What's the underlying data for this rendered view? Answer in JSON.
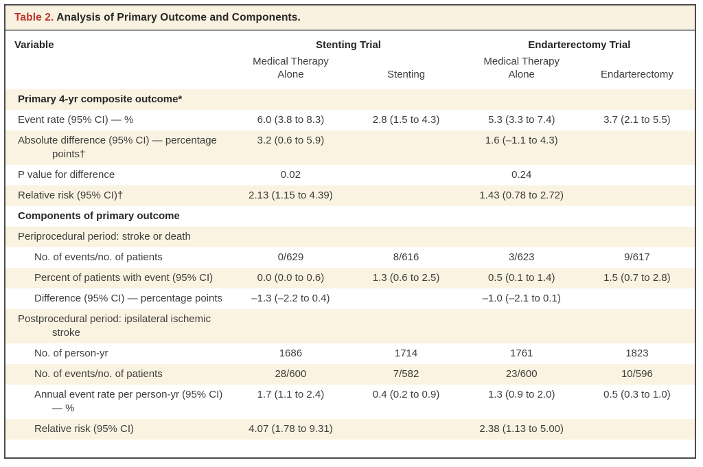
{
  "table": {
    "title_label": "Table 2.",
    "title_text": "Analysis of Primary Outcome and Components.",
    "col_headers": {
      "variable": "Variable",
      "groups": [
        {
          "label": "Stenting Trial",
          "sub": [
            "Medical Therapy Alone",
            "Stenting"
          ]
        },
        {
          "label": "Endarterectomy Trial",
          "sub": [
            "Medical Therapy Alone",
            "Endarterectomy"
          ]
        }
      ]
    },
    "rows": [
      {
        "label": "Primary 4-yr composite outcome*",
        "indent": 0,
        "bold": true,
        "values": [
          "",
          "",
          "",
          ""
        ]
      },
      {
        "label": "Event rate (95% CI) — %",
        "indent": 0,
        "bold": false,
        "values": [
          "6.0 (3.8 to 8.3)",
          "2.8 (1.5 to 4.3)",
          "5.3 (3.3 to 7.4)",
          "3.7 (2.1 to 5.5)"
        ]
      },
      {
        "label": "Absolute difference (95% CI) — percentage points†",
        "indent": 0,
        "bold": false,
        "values": [
          "3.2 (0.6 to 5.9)",
          "",
          "1.6 (–1.1 to 4.3)",
          ""
        ]
      },
      {
        "label": "P value for difference",
        "indent": 0,
        "bold": false,
        "values": [
          "0.02",
          "",
          "0.24",
          ""
        ]
      },
      {
        "label": "Relative risk (95% CI)†",
        "indent": 0,
        "bold": false,
        "values": [
          "2.13 (1.15 to 4.39)",
          "",
          "1.43 (0.78 to 2.72)",
          ""
        ]
      },
      {
        "label": "Components of primary outcome",
        "indent": 0,
        "bold": true,
        "values": [
          "",
          "",
          "",
          ""
        ]
      },
      {
        "label": "Periprocedural period: stroke or death",
        "indent": 0,
        "bold": false,
        "values": [
          "",
          "",
          "",
          ""
        ]
      },
      {
        "label": "No. of events/no. of patients",
        "indent": 1,
        "bold": false,
        "values": [
          "0/629",
          "8/616",
          "3/623",
          "9/617"
        ]
      },
      {
        "label": "Percent of patients with event (95% CI)",
        "indent": 1,
        "bold": false,
        "values": [
          "0.0 (0.0 to 0.6)",
          "1.3 (0.6 to 2.5)",
          "0.5 (0.1 to 1.4)",
          "1.5 (0.7 to 2.8)"
        ]
      },
      {
        "label": "Difference (95% CI) — percentage points",
        "indent": 1,
        "bold": false,
        "values": [
          "–1.3 (–2.2 to 0.4)",
          "",
          "–1.0 (–2.1 to 0.1)",
          ""
        ]
      },
      {
        "label": "Postprocedural period: ipsilateral ischemic stroke",
        "indent": 0,
        "bold": false,
        "values": [
          "",
          "",
          "",
          ""
        ]
      },
      {
        "label": "No. of person-yr",
        "indent": 1,
        "bold": false,
        "values": [
          "1686",
          "1714",
          "1761",
          "1823"
        ]
      },
      {
        "label": "No. of events/no. of patients",
        "indent": 1,
        "bold": false,
        "values": [
          "28/600",
          "7/582",
          "23/600",
          "10/596"
        ]
      },
      {
        "label": "Annual event rate per person-yr (95% CI) — %",
        "indent": 1,
        "bold": false,
        "values": [
          "1.7 (1.1 to 2.4)",
          "0.4 (0.2 to 0.9)",
          "1.3 (0.9 to 2.0)",
          "0.5 (0.3 to 1.0)"
        ]
      },
      {
        "label": "Relative risk (95% CI)",
        "indent": 1,
        "bold": false,
        "values": [
          "4.07 (1.78 to 9.31)",
          "",
          "2.38 (1.13 to 5.00)",
          ""
        ]
      }
    ],
    "colors": {
      "stripe_cream": "#fbf3e1",
      "title_red": "#bd352e",
      "frame_border": "#4b4b4d"
    }
  }
}
